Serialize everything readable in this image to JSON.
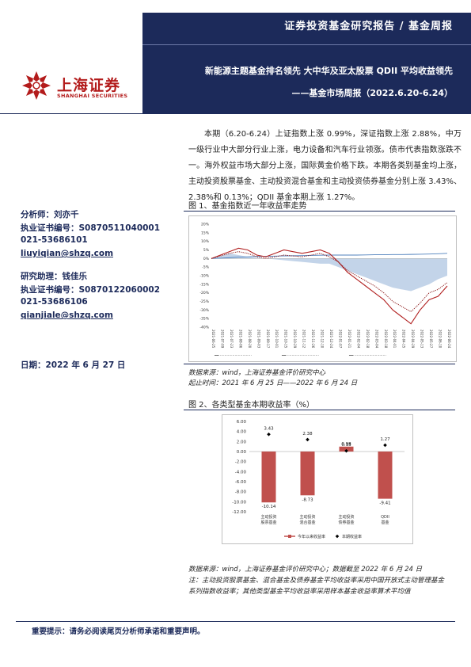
{
  "header": {
    "label": "证券投资基金研究报告 / 基金周报",
    "title": "新能源主题基金排名领先 大中华及亚太股票 QDII 平均收益领先",
    "subtitle": "——基金市场周报（2022.6.20-6.24）",
    "brand_cn": "上海证券",
    "brand_en": "SHANGHAI SECURITIES"
  },
  "summary": "本期（6.20-6.24）上证指数上涨 0.99%，深证指数上涨 2.88%，中万一级行业中大部分行业上涨，电力设备和汽车行业领涨。债市代表指数涨跌不一。海外权益市场大部分上涨，国际黄金价格下跌。本期各类别基金均上涨，主动投资股票基金、主动投资混合基金和主动投资债券基金分别上涨 3.43%、2.38%和 0.13%；QDII 基金本期上涨 1.27%。",
  "analysts": {
    "analyst_label": "分析师：刘亦千",
    "analyst_cert": "执业证书编号：S0870511040001",
    "analyst_phone": "021-53686101",
    "analyst_email": "liuyiqian@shzq.com",
    "assistant_label": "研究助理：钱佳乐",
    "assistant_cert": "执业证书编号：S0870122060002",
    "assistant_phone": "021-53686106",
    "assistant_email": "qianjiale@shzq.com",
    "date": "日期：2022 年 6 月 27 日"
  },
  "figure1": {
    "title": "图 1、基金指数近一年收益率走势",
    "source": "数据来源：wind，上海证券基金评价研究中心",
    "period": "起止时间：2021 年 6 月 25 日——2022 年 6 月 24 日"
  },
  "figure2": {
    "title": "图 2、各类型基金本期收益率（%）",
    "source": "数据来源：wind，上海证券基金评价研究中心；数据截至 2022 年 6 月 24 日",
    "note": "注：主动投资股票基金、混合基金及债券基金平均收益率采用中国开放式主动管理基金系列指数收益率；其他类型基金平均收益率采用样本基金收益率算术平均值"
  },
  "footer": {
    "text": "重要提示：请务必阅读尾页分析师承诺和重要声明。"
  },
  "colors": {
    "navy": "#1c2a5a",
    "brand_red": "#b31b1b",
    "bar_red": "#c0504d",
    "line_blue": "#4f81bd",
    "area_blue": "#b9cde5"
  },
  "chart_data": [
    {
      "type": "line",
      "title": "图 1、基金指数近一年收益率走势",
      "y_ticks": [
        "20%",
        "15%",
        "10%",
        "5%",
        "0%",
        "-5%",
        "-10%",
        "-15%",
        "-20%",
        "-25%",
        "-30%",
        "-35%",
        "-40%"
      ],
      "ylim": [
        -40,
        20
      ],
      "x": [
        "2021-06-25",
        "2021-07-09",
        "2021-07-23",
        "2021-08-06",
        "2021-08-20",
        "2021-09-03",
        "2021-09-17",
        "2021-10-01",
        "2021-10-15",
        "2021-10-29",
        "2021-11-12",
        "2021-11-26",
        "2021-12-10",
        "2021-12-24",
        "2022-01-07",
        "2022-01-21",
        "2022-02-04",
        "2022-02-18",
        "2022-03-04",
        "2022-03-18",
        "2022-04-01",
        "2022-04-15",
        "2022-04-29",
        "2022-05-13",
        "2022-05-27",
        "2022-06-10",
        "2022-06-24"
      ],
      "series": [
        {
          "name": "",
          "style": "blue-line",
          "values": [
            0,
            0.2,
            0.5,
            0.8,
            1.0,
            1.2,
            1.3,
            1.4,
            1.5,
            1.6,
            1.7,
            1.8,
            1.9,
            2.0,
            2.0,
            2.0,
            2.0,
            2.1,
            2.2,
            2.2,
            2.3,
            2.3,
            2.4,
            2.5,
            2.6,
            2.8,
            3.0
          ]
        },
        {
          "name": "",
          "style": "area",
          "values": [
            0,
            1.5,
            3.0,
            2.0,
            1.0,
            0.5,
            0.0,
            -0.5,
            -1.0,
            -1.5,
            -2.0,
            -2.5,
            -3.0,
            -3.0,
            -5.0,
            -7.0,
            -9.0,
            -11.0,
            -13.0,
            -15.0,
            -17.0,
            -18.0,
            -19.0,
            -17.0,
            -15.0,
            -12.0,
            -10.0
          ]
        },
        {
          "name": "",
          "style": "red-solid",
          "values": [
            0,
            2.0,
            4.0,
            6.0,
            5.0,
            2.0,
            1.0,
            3.0,
            5.0,
            4.0,
            3.0,
            4.0,
            5.0,
            3.0,
            -2.0,
            -8.0,
            -12.0,
            -16.0,
            -20.0,
            -24.0,
            -30.0,
            -34.0,
            -38.0,
            -30.0,
            -24.0,
            -22.0,
            -16.0
          ]
        },
        {
          "name": "",
          "style": "red-dotted",
          "values": [
            0,
            1.5,
            3.0,
            4.0,
            3.0,
            1.0,
            0.0,
            1.0,
            2.0,
            1.5,
            1.0,
            2.0,
            3.0,
            1.0,
            -2.0,
            -7.0,
            -10.0,
            -13.0,
            -16.0,
            -20.0,
            -25.0,
            -28.0,
            -31.0,
            -26.0,
            -20.0,
            -18.0,
            -14.0
          ]
        }
      ]
    },
    {
      "type": "bar",
      "title": "图 2、各类型基金本期收益率（%）",
      "categories": [
        "主动投资股票基金",
        "主动投资混合基金",
        "主动投资债券基金",
        "QDII基金"
      ],
      "y_ticks": [
        "6.00",
        "4.00",
        "2.00",
        "0.00",
        "-2.00",
        "-4.00",
        "-6.00",
        "-8.00",
        "-10.00",
        "-12.00"
      ],
      "ylim": [
        -12,
        6
      ],
      "series": [
        {
          "name": "今年以来收益率",
          "values": [
            -10.14,
            -8.73,
            0.98,
            -9.41
          ],
          "labels": [
            "-10.14",
            "-8.73",
            "0.98",
            "-9.41"
          ]
        },
        {
          "name": "本期收益率",
          "values": [
            3.43,
            2.38,
            0.13,
            1.27
          ],
          "labels": [
            "3.43",
            "2.38",
            "0.13",
            "1.27"
          ]
        }
      ]
    }
  ]
}
